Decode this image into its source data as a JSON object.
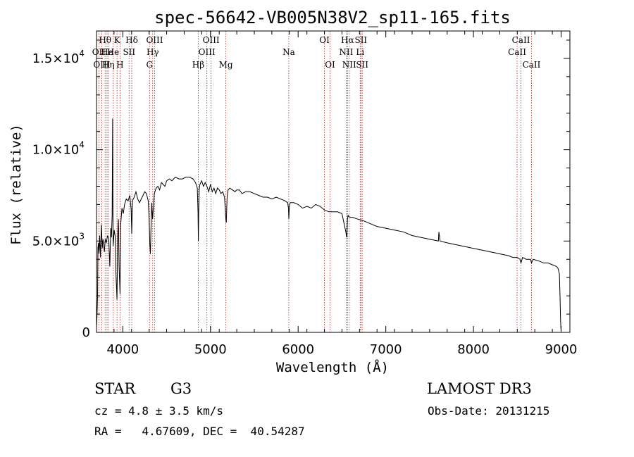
{
  "chart_data": {
    "type": "line",
    "title": "spec-56642-VB005N38V2_sp11-165.fits",
    "xlabel": "Wavelength (Å)",
    "ylabel": "Flux (relative)",
    "xlim": [
      3700,
      9100
    ],
    "ylim": [
      0,
      16500
    ],
    "xticks": [
      {
        "value": 4000,
        "label": "4000"
      },
      {
        "value": 5000,
        "label": "5000"
      },
      {
        "value": 6000,
        "label": "6000"
      },
      {
        "value": 7000,
        "label": "7000"
      },
      {
        "value": 8000,
        "label": "8000"
      },
      {
        "value": 9000,
        "label": "9000"
      }
    ],
    "yticks": [
      {
        "value": 0,
        "mantissa": "0",
        "exponent": ""
      },
      {
        "value": 5000,
        "mantissa": "5.0×10",
        "exponent": "3"
      },
      {
        "value": 10000,
        "mantissa": "1.0×10",
        "exponent": "4"
      },
      {
        "value": 15000,
        "mantissa": "1.5×10",
        "exponent": "4"
      }
    ],
    "series": [
      {
        "name": "spectrum",
        "color": "#000000",
        "x": [
          3700,
          3706,
          3712,
          3716,
          3722,
          3728,
          3736,
          3745,
          3756,
          3766,
          3774,
          3782,
          3790,
          3800,
          3812,
          3825,
          3840,
          3852,
          3862,
          3870,
          3878,
          3884,
          3889,
          3895,
          3902,
          3912,
          3922,
          3934,
          3942,
          3950,
          3958,
          3968,
          3976,
          3990,
          4005,
          4020,
          4040,
          4060,
          4080,
          4095,
          4102,
          4110,
          4130,
          4150,
          4170,
          4190,
          4210,
          4230,
          4250,
          4270,
          4290,
          4300,
          4308,
          4315,
          4320,
          4330,
          4340,
          4352,
          4360,
          4380,
          4400,
          4420,
          4440,
          4460,
          4480,
          4500,
          4530,
          4560,
          4600,
          4640,
          4680,
          4720,
          4760,
          4800,
          4830,
          4850,
          4858,
          4862,
          4866,
          4872,
          4880,
          4900,
          4920,
          4940,
          4960,
          4980,
          5000,
          5020,
          5040,
          5060,
          5080,
          5100,
          5120,
          5140,
          5160,
          5170,
          5175,
          5180,
          5185,
          5190,
          5200,
          5220,
          5250,
          5280,
          5300,
          5330,
          5360,
          5400,
          5450,
          5500,
          5550,
          5600,
          5650,
          5700,
          5750,
          5800,
          5850,
          5880,
          5890,
          5894,
          5900,
          5910,
          5950,
          6000,
          6050,
          6100,
          6150,
          6200,
          6250,
          6300,
          6350,
          6400,
          6450,
          6500,
          6540,
          6555,
          6563,
          6570,
          6590,
          6620,
          6680,
          6750,
          6800,
          6900,
          7000,
          7100,
          7200,
          7300,
          7400,
          7500,
          7600,
          7605,
          7620,
          7700,
          7800,
          7900,
          8000,
          8100,
          8200,
          8300,
          8400,
          8450,
          8500,
          8530,
          8542,
          8560,
          8600,
          8650,
          8662,
          8680,
          8750,
          8800,
          8850,
          8900,
          8950,
          8965,
          8980,
          8988,
          8994,
          8999
        ],
        "y": [
          300,
          900,
          2000,
          4600,
          4900,
          4300,
          5300,
          4100,
          5900,
          4600,
          5100,
          4800,
          4400,
          5100,
          4900,
          5300,
          5100,
          3600,
          5700,
          5200,
          6400,
          11700,
          4700,
          5100,
          5600,
          5300,
          3200,
          1800,
          5300,
          6200,
          3600,
          2100,
          5900,
          6800,
          6500,
          7000,
          7300,
          7200,
          7500,
          6700,
          5400,
          7200,
          7400,
          7700,
          7300,
          7100,
          7300,
          7500,
          7700,
          7600,
          7200,
          6200,
          4800,
          4300,
          5500,
          7100,
          6200,
          7000,
          7600,
          7900,
          8000,
          7800,
          8200,
          8100,
          8000,
          8300,
          8400,
          8300,
          8500,
          8400,
          8400,
          8500,
          8500,
          8400,
          8200,
          7900,
          6600,
          5000,
          6700,
          7800,
          8100,
          8300,
          8000,
          8200,
          8000,
          7700,
          8100,
          7700,
          7900,
          7600,
          7900,
          7800,
          7600,
          7700,
          7400,
          6700,
          6200,
          6000,
          6700,
          7400,
          7800,
          7900,
          7800,
          7700,
          7800,
          7800,
          7600,
          7700,
          7700,
          7600,
          7500,
          7400,
          7400,
          7300,
          7400,
          7300,
          7200,
          7100,
          6800,
          6200,
          6900,
          7100,
          7100,
          7000,
          6800,
          6900,
          6800,
          7000,
          6900,
          6700,
          6600,
          6600,
          6600,
          6500,
          5600,
          5200,
          6200,
          6400,
          6300,
          6300,
          6200,
          6100,
          6000,
          5800,
          5700,
          5600,
          5500,
          5300,
          5200,
          5100,
          5000,
          5500,
          5000,
          4900,
          4800,
          4700,
          4600,
          4500,
          4400,
          4300,
          4200,
          4100,
          4100,
          4000,
          3800,
          4100,
          4000,
          4000,
          3800,
          4000,
          3900,
          3800,
          3800,
          3700,
          3600,
          3500,
          3200,
          1800,
          600,
          100
        ]
      }
    ],
    "line_color": "#b22222",
    "lines": [
      {
        "label": "Hθ",
        "x": 3798,
        "row": 1
      },
      {
        "label": "OII",
        "x": 3727,
        "row": 2
      },
      {
        "label": "OIII",
        "x": 3760,
        "row": 3
      },
      {
        "label": "He",
        "x": 3820,
        "row": 2
      },
      {
        "label": "Hη",
        "x": 3835,
        "row": 3
      },
      {
        "label": "K",
        "x": 3934,
        "row": 1
      },
      {
        "label": "He",
        "x": 3889,
        "row": 2
      },
      {
        "label": "H",
        "x": 3968,
        "row": 3
      },
      {
        "label": "SII",
        "x": 4072,
        "row": 2
      },
      {
        "label": "Hδ",
        "x": 4102,
        "row": 1
      },
      {
        "label": "OIII",
        "x": 4363,
        "row": 1
      },
      {
        "label": "Hγ",
        "x": 4341,
        "row": 2
      },
      {
        "label": "G",
        "x": 4305,
        "row": 3
      },
      {
        "label": "Hβ",
        "x": 4861,
        "row": 3
      },
      {
        "label": "OIII",
        "x": 5007,
        "row": 1
      },
      {
        "label": "OIII",
        "x": 4959,
        "row": 2
      },
      {
        "label": "Mg",
        "x": 5175,
        "row": 3
      },
      {
        "label": "Na",
        "x": 5893,
        "row": 2
      },
      {
        "label": "OI",
        "x": 6300,
        "row": 1
      },
      {
        "label": "OI",
        "x": 6364,
        "row": 3
      },
      {
        "label": "Hα",
        "x": 6563,
        "row": 1
      },
      {
        "label": "NII",
        "x": 6548,
        "row": 2
      },
      {
        "label": "NII",
        "x": 6583,
        "row": 3
      },
      {
        "label": "SII",
        "x": 6716,
        "row": 1
      },
      {
        "label": "Li",
        "x": 6708,
        "row": 2
      },
      {
        "label": "SII",
        "x": 6731,
        "row": 3
      },
      {
        "label": "CaII",
        "x": 8542,
        "row": 1
      },
      {
        "label": "CaII",
        "x": 8498,
        "row": 2
      },
      {
        "label": "CaII",
        "x": 8662,
        "row": 3
      }
    ]
  },
  "info": {
    "object_class": "STAR",
    "subclass": "G3",
    "survey": "LAMOST DR3",
    "velocity": "cz = 4.8 ± 3.5 km/s",
    "obs_date": "Obs-Date: 20131215",
    "coordinates": "RA =   4.67609, DEC =  40.54287"
  }
}
